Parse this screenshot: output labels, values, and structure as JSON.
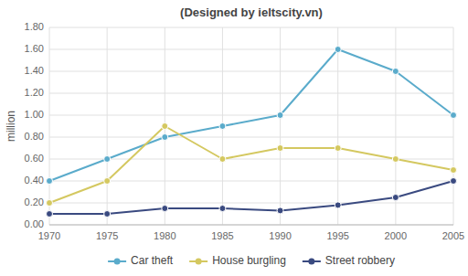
{
  "chart_data": {
    "type": "line",
    "title": "(Designed by ieltscity.vn)",
    "y_label": "million",
    "x": [
      1970,
      1975,
      1980,
      1985,
      1990,
      1995,
      2000,
      2005
    ],
    "xlim": [
      1970,
      2005
    ],
    "xticks": [
      1970,
      1975,
      1980,
      1985,
      1990,
      1995,
      2000,
      2005
    ],
    "ylim": [
      0.0,
      1.8
    ],
    "yticks": [
      {
        "value": 0.0,
        "label": "0.00"
      },
      {
        "value": 0.2,
        "label": "0.20"
      },
      {
        "value": 0.4,
        "label": "0.40"
      },
      {
        "value": 0.6,
        "label": "0.60"
      },
      {
        "value": 0.8,
        "label": "0.80"
      },
      {
        "value": 1.0,
        "label": "1.00"
      },
      {
        "value": 1.2,
        "label": "1.20"
      },
      {
        "value": 1.4,
        "label": "1.40"
      },
      {
        "value": 1.6,
        "label": "1.60"
      },
      {
        "value": 1.8,
        "label": "1.80"
      }
    ],
    "grid": true,
    "legend": "bottom",
    "marker": "circle",
    "line_style": "solid",
    "series": [
      {
        "name": "Car theft",
        "color": "#5aabcb",
        "values": [
          0.4,
          0.6,
          0.8,
          0.9,
          1.0,
          1.6,
          1.4,
          1.0
        ]
      },
      {
        "name": "House burgling",
        "color": "#d4c860",
        "values": [
          0.2,
          0.4,
          0.9,
          0.6,
          0.7,
          0.7,
          0.6,
          0.5
        ]
      },
      {
        "name": "Street robbery",
        "color": "#3a4a80",
        "values": [
          0.1,
          0.1,
          0.15,
          0.15,
          0.13,
          0.18,
          0.25,
          0.4
        ]
      }
    ]
  }
}
